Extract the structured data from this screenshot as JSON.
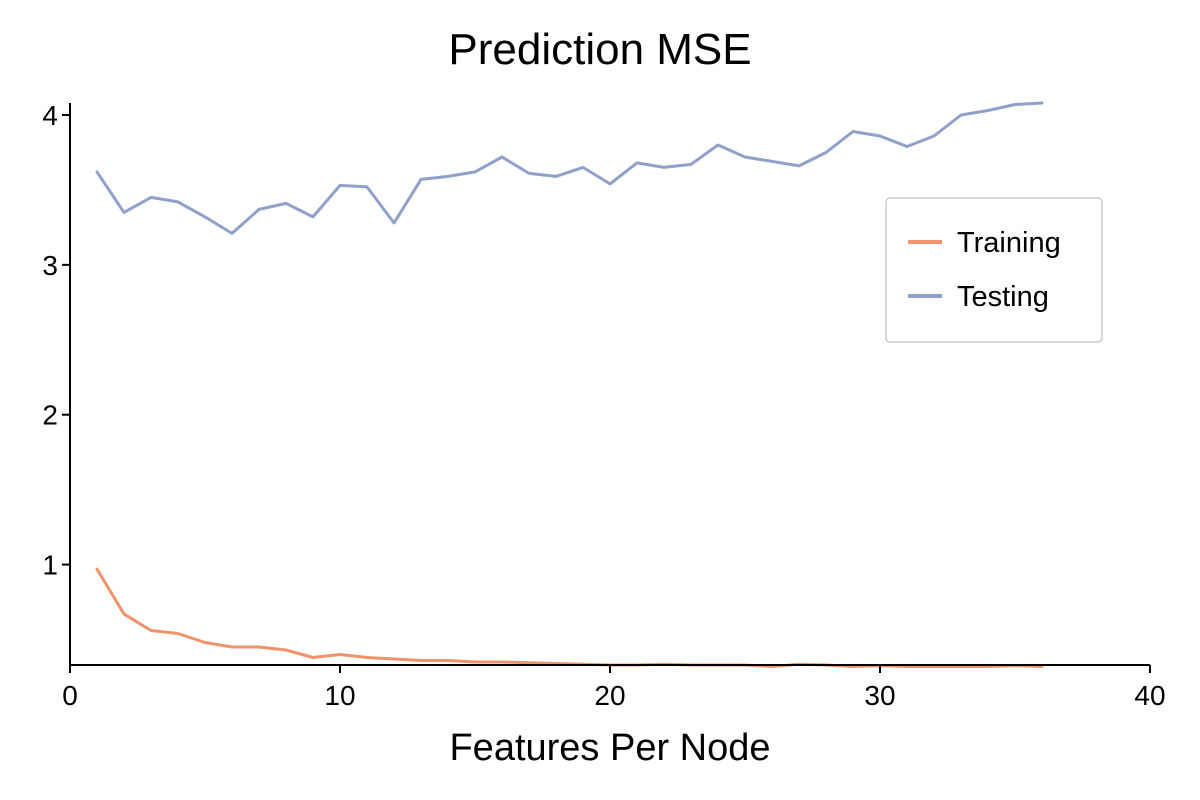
{
  "chart_data": {
    "type": "line",
    "title": "Prediction MSE",
    "xlabel": "Features Per Node",
    "ylabel": "",
    "xlim": [
      0,
      40
    ],
    "ylim": [
      0.33,
      4.08
    ],
    "xticks": [
      0,
      10,
      20,
      30,
      40
    ],
    "yticks": [
      1,
      2,
      3,
      4
    ],
    "grid": false,
    "legend_position": "upper-right",
    "x": [
      1,
      2,
      3,
      4,
      5,
      6,
      7,
      8,
      9,
      10,
      11,
      12,
      13,
      14,
      15,
      16,
      17,
      18,
      19,
      20,
      21,
      22,
      23,
      24,
      25,
      26,
      27,
      28,
      29,
      30,
      31,
      32,
      33,
      34,
      35,
      36
    ],
    "series": [
      {
        "name": "Training",
        "color": "#F0926A",
        "values": [
          0.97,
          0.67,
          0.56,
          0.54,
          0.48,
          0.45,
          0.45,
          0.43,
          0.38,
          0.4,
          0.38,
          0.37,
          0.36,
          0.36,
          0.35,
          0.35,
          0.345,
          0.34,
          0.335,
          0.33,
          0.33,
          0.335,
          0.33,
          0.33,
          0.33,
          0.32,
          0.335,
          0.33,
          0.32,
          0.325,
          0.32,
          0.32,
          0.32,
          0.32,
          0.325,
          0.32
        ]
      },
      {
        "name": "Testing",
        "color": "#8FA1CB",
        "values": [
          3.62,
          3.35,
          3.45,
          3.42,
          3.32,
          3.21,
          3.37,
          3.41,
          3.32,
          3.53,
          3.52,
          3.28,
          3.57,
          3.59,
          3.62,
          3.72,
          3.61,
          3.59,
          3.65,
          3.54,
          3.68,
          3.65,
          3.67,
          3.8,
          3.72,
          3.69,
          3.66,
          3.75,
          3.89,
          3.86,
          3.79,
          3.86,
          4.0,
          4.03,
          4.07,
          4.08
        ]
      }
    ]
  }
}
